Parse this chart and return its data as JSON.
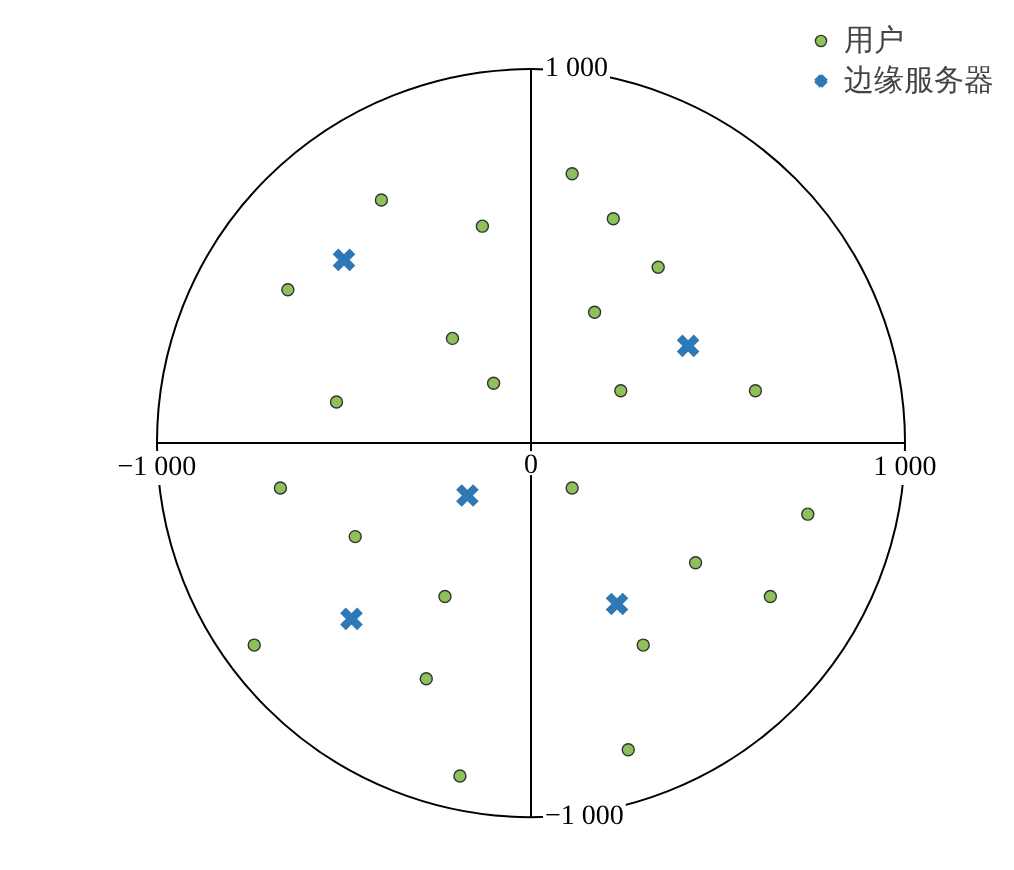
{
  "chart_data": {
    "type": "scatter",
    "xlim": [
      -1000,
      1000
    ],
    "ylim": [
      -1000,
      1000
    ],
    "xticks": [
      {
        "value": -1000,
        "label": "−1 000"
      },
      {
        "value": 0,
        "label": "0"
      },
      {
        "value": 1000,
        "label": "1 000"
      }
    ],
    "yticks": [
      {
        "value": -1000,
        "label": "−1 000"
      },
      {
        "value": 1000,
        "label": "1 000"
      }
    ],
    "grid": false,
    "legend": "top right",
    "series": [
      {
        "name": "用户",
        "color": "#8dc15a",
        "marker": "circle",
        "x": [
          -400,
          -130,
          -650,
          -210,
          -100,
          -520,
          110,
          220,
          340,
          170,
          240,
          600,
          -670,
          -470,
          110,
          740,
          440,
          640,
          -230,
          -740,
          300,
          -280,
          260,
          -190
        ],
        "values": [
          650,
          580,
          410,
          280,
          160,
          110,
          720,
          600,
          470,
          350,
          140,
          140,
          -120,
          -250,
          -120,
          -190,
          -320,
          -410,
          -410,
          -540,
          -540,
          -630,
          -820,
          -890
        ]
      },
      {
        "name": "边缘服务器",
        "color": "#2e78b5",
        "marker": "cross",
        "x": [
          -500,
          420,
          -170,
          -480,
          230
        ],
        "values": [
          490,
          260,
          -140,
          -470,
          -430
        ]
      }
    ]
  }
}
